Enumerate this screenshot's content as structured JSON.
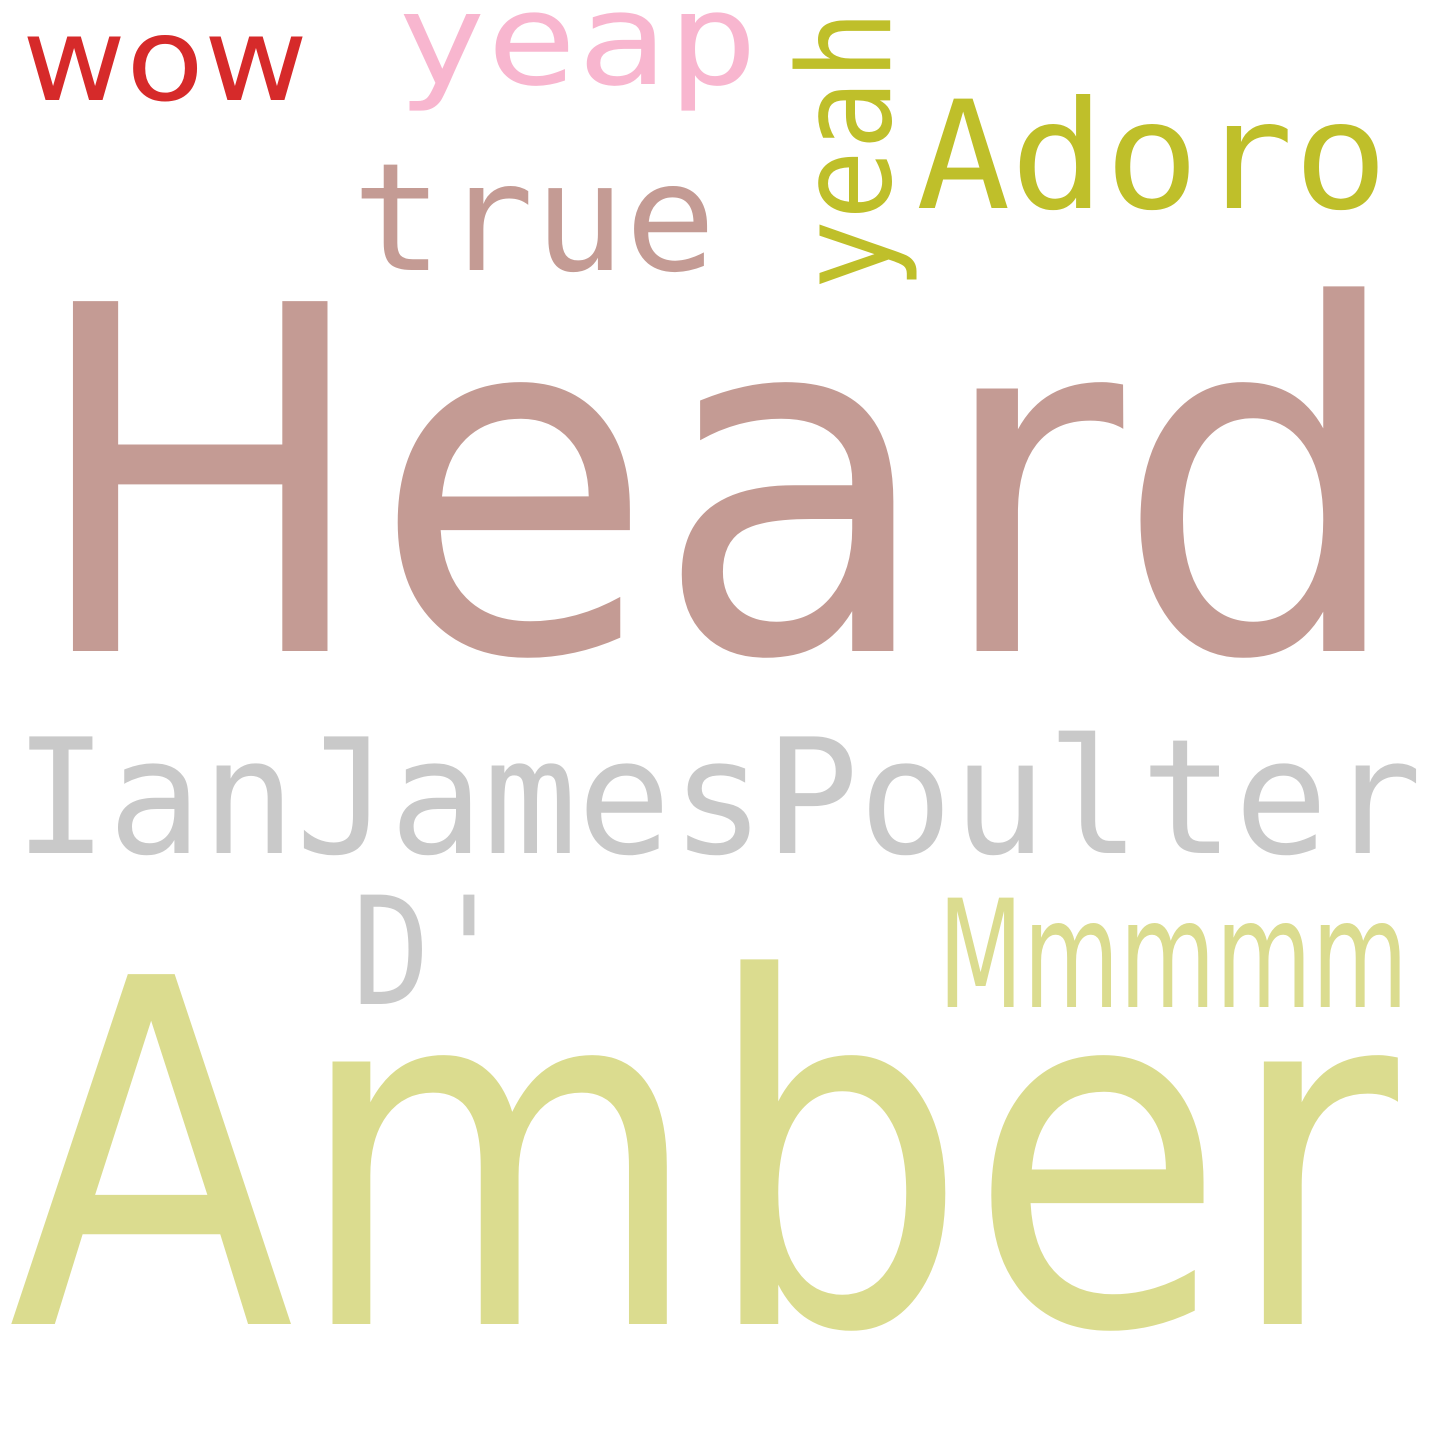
{
  "words": {
    "heard": {
      "text": "Heard",
      "color": "#c49b94"
    },
    "amber": {
      "text": "Amber",
      "color": "#dbdc8f"
    },
    "ian": {
      "text": "IanJamesPoulter",
      "color": "#c9c9c9"
    },
    "true": {
      "text": "true",
      "color": "#c49b94"
    },
    "adoro": {
      "text": "Adoro",
      "color": "#bfbf2a"
    },
    "yeah": {
      "text": "yeah",
      "color": "#bfbf2a"
    },
    "yeap": {
      "text": "yeap",
      "color": "#f8b6cf"
    },
    "wow": {
      "text": "wow",
      "color": "#d62a2a"
    },
    "d": {
      "text": "D'",
      "color": "#c9c9c9"
    },
    "mmmmm": {
      "text": "Mmmmm",
      "color": "#dbdc8f"
    }
  }
}
